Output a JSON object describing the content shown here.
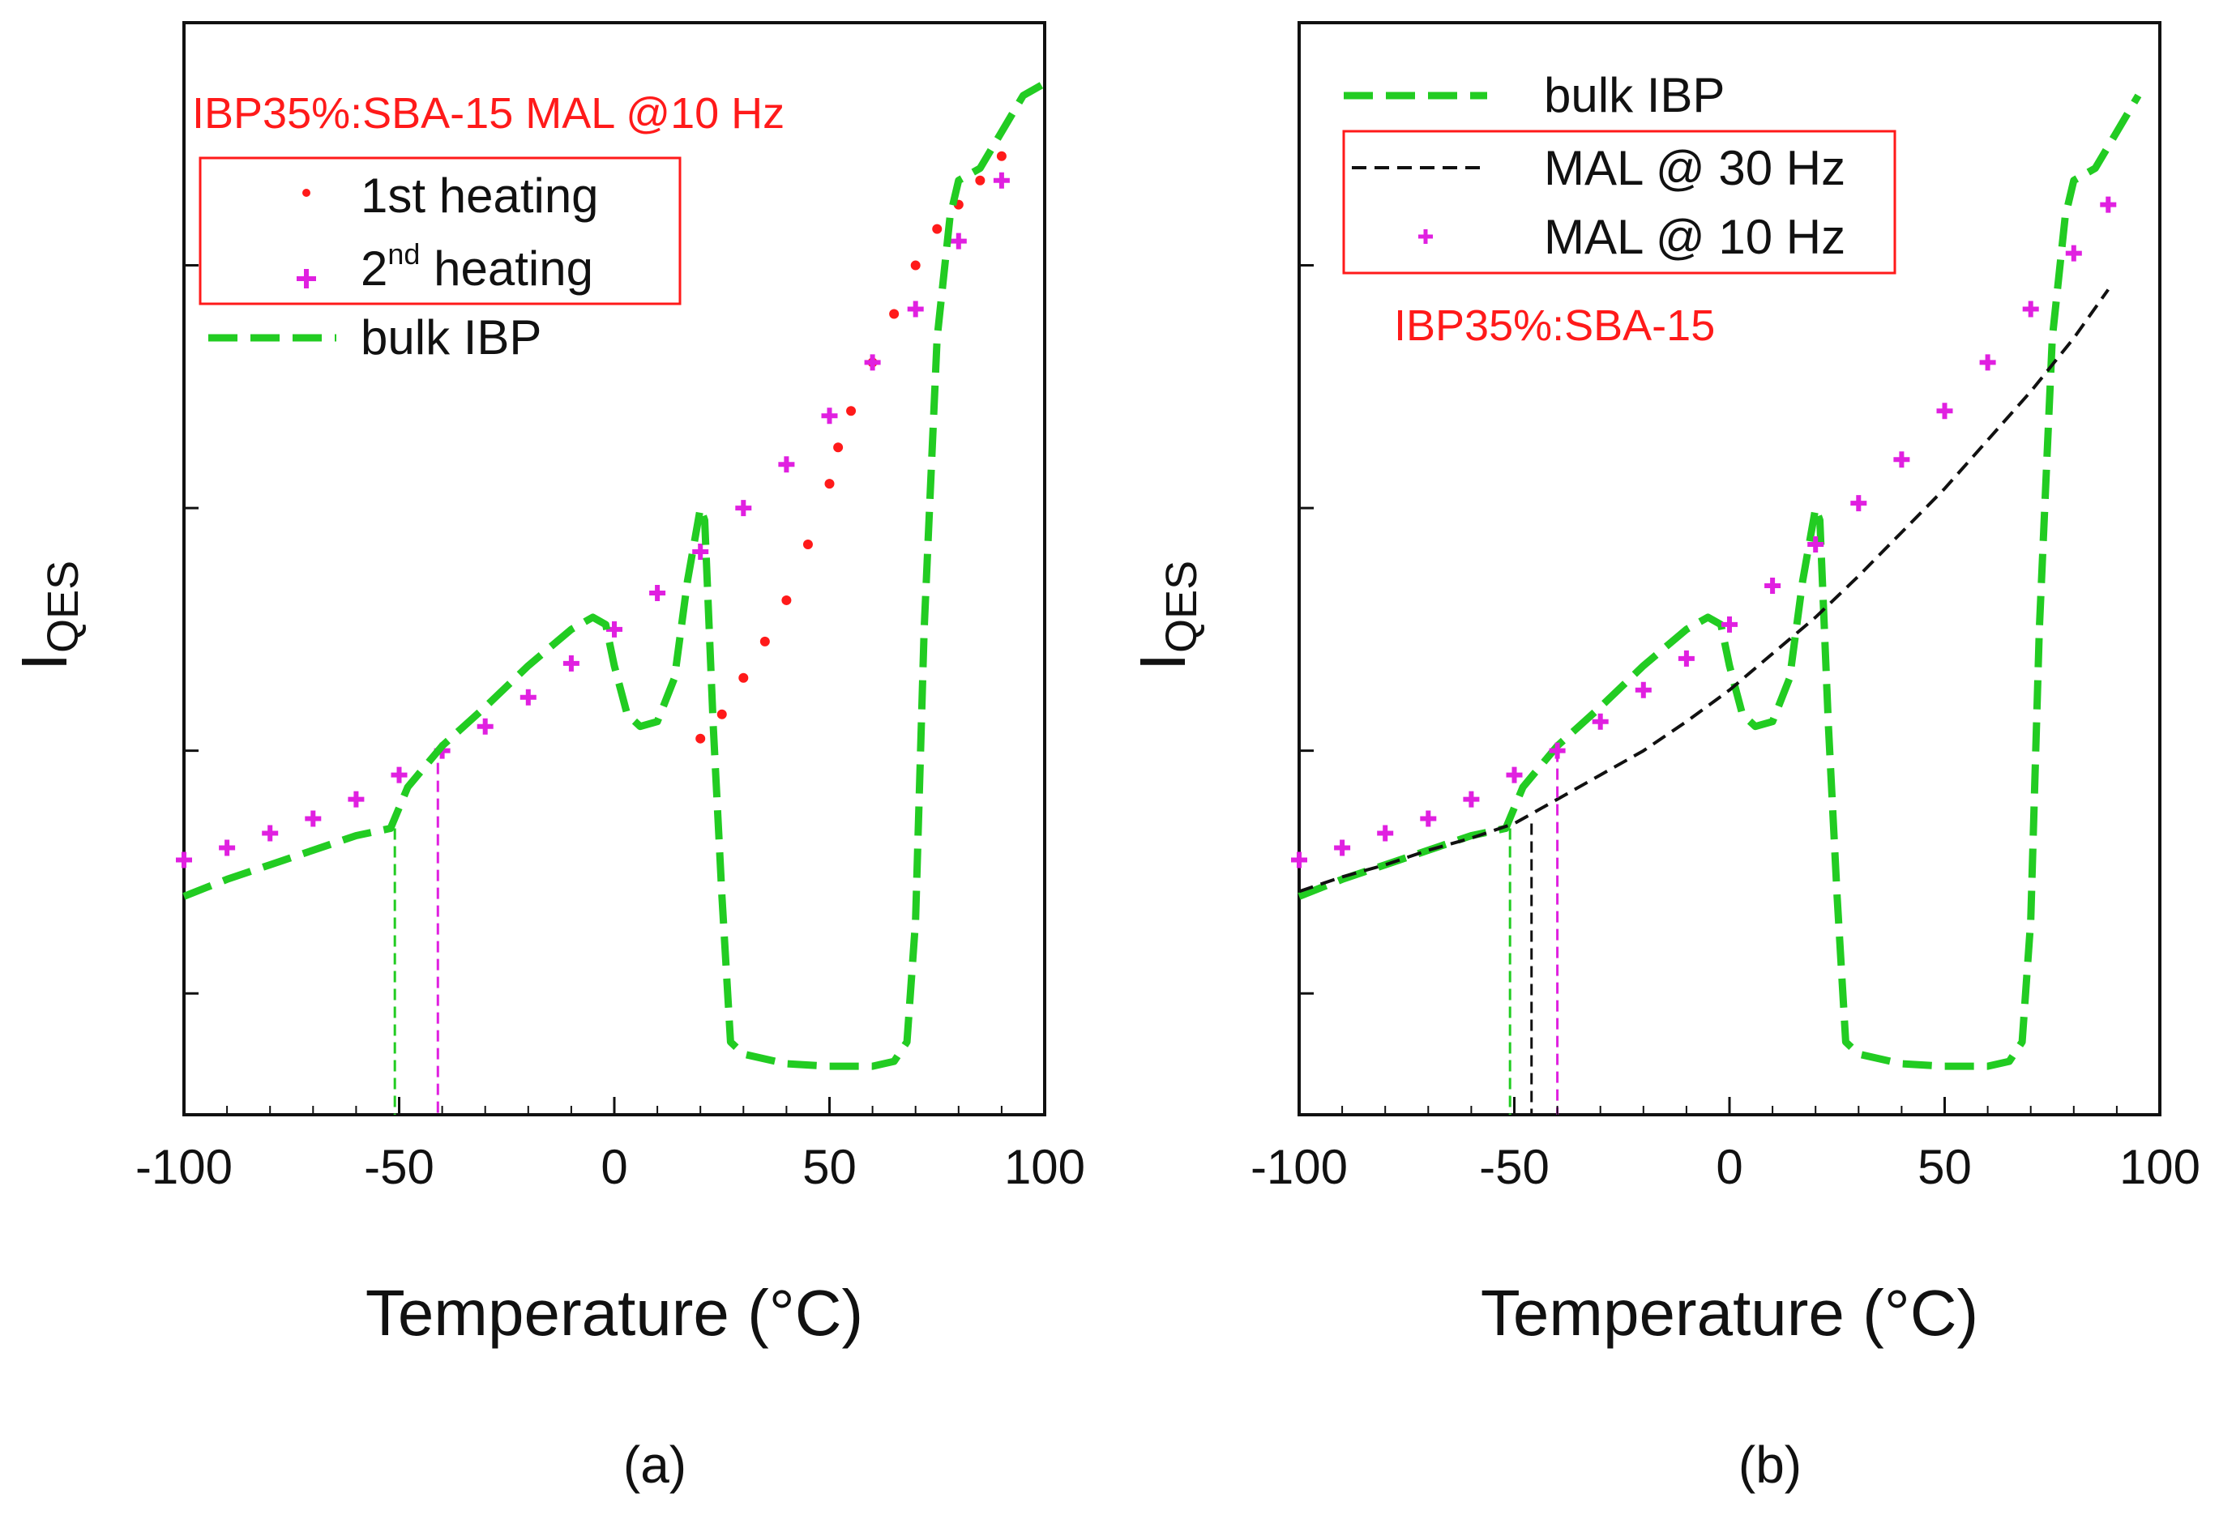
{
  "chart_data": [
    {
      "panel_label": "(a)",
      "type": "scatter",
      "annotation": "IBP35%:SBA-15 MAL @10 Hz",
      "xlabel": "Temperature (°C)",
      "ylabel_main": "I",
      "ylabel_sub": "QES",
      "xlim": [
        -100,
        100
      ],
      "ylim": [
        0,
        4.5
      ],
      "xticks": [
        "-100",
        "-50",
        "0",
        "50",
        "100"
      ],
      "yticks_labeled": false,
      "grid": false,
      "legend_boxed": {
        "position": "top-left",
        "entries": [
          {
            "label": "1st heating"
          },
          {
            "label_main": "2",
            "label_sup": "nd",
            "label_rest": " heating"
          }
        ]
      },
      "legend_free": {
        "label": "bulk IBP"
      },
      "colors": {
        "first": "#ff1a1a",
        "second": "#e020e0",
        "bulk": "#22cc22",
        "box": "#ff1a1a"
      },
      "series": [
        {
          "name": "1st heating",
          "style": "markers-small",
          "color": "#ff1a1a",
          "x": [
            20,
            25,
            30,
            35,
            40,
            45,
            50,
            52,
            55,
            60,
            65,
            70,
            75,
            80,
            85,
            90
          ],
          "y": [
            1.55,
            1.65,
            1.8,
            1.95,
            2.12,
            2.35,
            2.6,
            2.75,
            2.9,
            3.1,
            3.3,
            3.5,
            3.65,
            3.75,
            3.85,
            3.95
          ]
        },
        {
          "name": "2nd heating",
          "style": "markers-plus",
          "color": "#e020e0",
          "x": [
            -100,
            -90,
            -80,
            -70,
            -60,
            -50,
            -40,
            -30,
            -20,
            -10,
            0,
            10,
            20,
            30,
            40,
            50,
            60,
            70,
            80,
            90
          ],
          "y": [
            1.05,
            1.1,
            1.16,
            1.22,
            1.3,
            1.4,
            1.5,
            1.6,
            1.72,
            1.86,
            2.0,
            2.15,
            2.32,
            2.5,
            2.68,
            2.88,
            3.1,
            3.32,
            3.6,
            3.85
          ]
        },
        {
          "name": "bulk IBP",
          "style": "dashed-thick",
          "color": "#22cc22",
          "x": [
            -100,
            -90,
            -80,
            -70,
            -60,
            -52,
            -48,
            -40,
            -30,
            -20,
            -10,
            -5,
            -2,
            0,
            3,
            6,
            10,
            14,
            17,
            20,
            21,
            23,
            25,
            27,
            30,
            40,
            50,
            60,
            65,
            68,
            70,
            72,
            75,
            78,
            80,
            85,
            90,
            95,
            100
          ],
          "y": [
            0.9,
            0.97,
            1.03,
            1.09,
            1.15,
            1.18,
            1.35,
            1.52,
            1.68,
            1.85,
            2.0,
            2.05,
            2.02,
            1.85,
            1.65,
            1.6,
            1.62,
            1.8,
            2.2,
            2.5,
            2.45,
            1.6,
            0.9,
            0.3,
            0.25,
            0.21,
            0.2,
            0.2,
            0.22,
            0.3,
            0.8,
            2.0,
            3.2,
            3.7,
            3.85,
            3.9,
            4.05,
            4.2,
            4.25
          ]
        }
      ],
      "vlines": [
        {
          "x": -51,
          "color": "#22cc22",
          "from_y": 1.18
        },
        {
          "x": -41,
          "color": "#e020e0",
          "from_y": 1.45
        }
      ]
    },
    {
      "panel_label": "(b)",
      "type": "scatter",
      "annotation": "IBP35%:SBA-15",
      "xlabel": "Temperature (°C)",
      "ylabel_main": "I",
      "ylabel_sub": "QES",
      "xlim": [
        -100,
        100
      ],
      "ylim": [
        0,
        4.5
      ],
      "xticks": [
        "-100",
        "-50",
        "0",
        "50",
        "100"
      ],
      "yticks_labeled": false,
      "grid": false,
      "legend_free": {
        "label": "bulk IBP"
      },
      "legend_boxed": {
        "position": "top-right",
        "entries": [
          {
            "label": "MAL @ 30 Hz"
          },
          {
            "label": "MAL @ 10 Hz"
          }
        ]
      },
      "colors": {
        "mal30": "#111111",
        "mal10": "#e020e0",
        "bulk": "#22cc22",
        "box": "#ff1a1a"
      },
      "series": [
        {
          "name": "bulk IBP",
          "style": "dashed-thick",
          "color": "#22cc22",
          "x": [
            -100,
            -90,
            -80,
            -70,
            -60,
            -52,
            -48,
            -40,
            -30,
            -20,
            -10,
            -5,
            -2,
            0,
            3,
            6,
            10,
            14,
            17,
            20,
            21,
            23,
            25,
            27,
            30,
            40,
            50,
            60,
            65,
            68,
            70,
            72,
            75,
            78,
            80,
            85,
            90,
            95
          ],
          "y": [
            0.9,
            0.97,
            1.03,
            1.09,
            1.15,
            1.18,
            1.35,
            1.52,
            1.68,
            1.85,
            2.0,
            2.05,
            2.02,
            1.85,
            1.65,
            1.6,
            1.62,
            1.8,
            2.2,
            2.5,
            2.45,
            1.6,
            0.9,
            0.3,
            0.25,
            0.21,
            0.2,
            0.2,
            0.22,
            0.3,
            0.8,
            2.0,
            3.2,
            3.7,
            3.85,
            3.9,
            4.05,
            4.2
          ]
        },
        {
          "name": "MAL @ 30 Hz",
          "style": "dashed-thin",
          "color": "#111111",
          "x": [
            -100,
            -90,
            -80,
            -70,
            -60,
            -50,
            -40,
            -30,
            -20,
            -10,
            0,
            10,
            20,
            30,
            40,
            50,
            60,
            70,
            80,
            88
          ],
          "y": [
            0.92,
            0.98,
            1.03,
            1.09,
            1.14,
            1.2,
            1.3,
            1.4,
            1.5,
            1.62,
            1.75,
            1.9,
            2.05,
            2.22,
            2.4,
            2.58,
            2.78,
            2.98,
            3.2,
            3.4
          ]
        },
        {
          "name": "MAL @ 10 Hz",
          "style": "markers-plus",
          "color": "#e020e0",
          "x": [
            -100,
            -90,
            -80,
            -70,
            -60,
            -50,
            -40,
            -30,
            -20,
            -10,
            0,
            10,
            20,
            30,
            40,
            50,
            60,
            70,
            80,
            88
          ],
          "y": [
            1.05,
            1.1,
            1.16,
            1.22,
            1.3,
            1.4,
            1.5,
            1.62,
            1.75,
            1.88,
            2.02,
            2.18,
            2.35,
            2.52,
            2.7,
            2.9,
            3.1,
            3.32,
            3.55,
            3.75
          ]
        }
      ],
      "vlines": [
        {
          "x": -51,
          "color": "#22cc22",
          "from_y": 1.18
        },
        {
          "x": -46,
          "color": "#111111",
          "from_y": 1.2
        },
        {
          "x": -40,
          "color": "#e020e0",
          "from_y": 1.5
        }
      ]
    }
  ]
}
